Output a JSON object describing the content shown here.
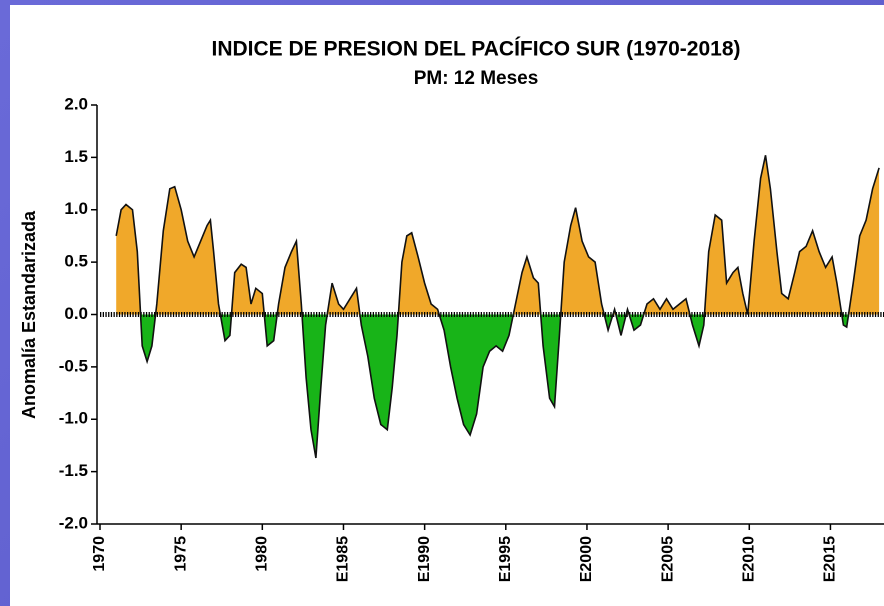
{
  "chart_data": {
    "type": "area",
    "title": "INDICE DE PRESION DEL PACÍFICO SUR (1970-2018)",
    "subtitle": "PM: 12 Meses",
    "y_label": "Anomalía Estandarizada",
    "x": [
      1971.0,
      1971.3,
      1971.6,
      1972.0,
      1972.3,
      1972.6,
      1972.9,
      1973.2,
      1973.5,
      1973.9,
      1974.3,
      1974.6,
      1975.0,
      1975.4,
      1975.8,
      1976.2,
      1976.6,
      1976.8,
      1977.0,
      1977.3,
      1977.7,
      1978.0,
      1978.3,
      1978.7,
      1979.0,
      1979.3,
      1979.6,
      1980.0,
      1980.3,
      1980.7,
      1981.0,
      1981.4,
      1981.8,
      1982.1,
      1982.4,
      1982.7,
      1983.0,
      1983.3,
      1983.6,
      1983.9,
      1984.3,
      1984.7,
      1985.0,
      1985.4,
      1985.8,
      1986.1,
      1986.5,
      1986.9,
      1987.3,
      1987.7,
      1988.0,
      1988.3,
      1988.6,
      1988.9,
      1989.2,
      1989.6,
      1990.0,
      1990.4,
      1990.8,
      1991.2,
      1991.6,
      1992.0,
      1992.4,
      1992.8,
      1993.2,
      1993.6,
      1994.0,
      1994.4,
      1994.8,
      1995.2,
      1995.6,
      1996.0,
      1996.3,
      1996.7,
      1997.0,
      1997.3,
      1997.7,
      1998.0,
      1998.3,
      1998.6,
      1999.0,
      1999.3,
      1999.7,
      2000.1,
      2000.5,
      2000.9,
      2001.3,
      2001.7,
      2002.1,
      2002.5,
      2002.9,
      2003.3,
      2003.7,
      2004.1,
      2004.5,
      2004.9,
      2005.3,
      2005.7,
      2006.1,
      2006.5,
      2006.9,
      2007.2,
      2007.5,
      2007.9,
      2008.3,
      2008.6,
      2009.0,
      2009.3,
      2009.6,
      2009.9,
      2010.3,
      2010.7,
      2011.0,
      2011.3,
      2011.7,
      2012.0,
      2012.4,
      2012.8,
      2013.1,
      2013.5,
      2013.9,
      2014.3,
      2014.7,
      2015.1,
      2015.4,
      2015.8,
      2016.0,
      2016.4,
      2016.8,
      2017.2,
      2017.6,
      2018.0
    ],
    "values": [
      0.75,
      1.0,
      1.05,
      1.0,
      0.6,
      -0.3,
      -0.45,
      -0.3,
      0.1,
      0.8,
      1.2,
      1.22,
      1.0,
      0.7,
      0.55,
      0.7,
      0.85,
      0.9,
      0.6,
      0.1,
      -0.25,
      -0.2,
      0.4,
      0.48,
      0.45,
      0.1,
      0.25,
      0.2,
      -0.3,
      -0.25,
      0.1,
      0.45,
      0.6,
      0.7,
      0.1,
      -0.6,
      -1.1,
      -1.37,
      -0.7,
      -0.1,
      0.3,
      0.1,
      0.05,
      0.15,
      0.25,
      -0.1,
      -0.4,
      -0.8,
      -1.05,
      -1.1,
      -0.7,
      -0.2,
      0.5,
      0.75,
      0.78,
      0.55,
      0.3,
      0.1,
      0.05,
      -0.15,
      -0.5,
      -0.8,
      -1.05,
      -1.15,
      -0.95,
      -0.5,
      -0.35,
      -0.3,
      -0.35,
      -0.2,
      0.1,
      0.4,
      0.55,
      0.35,
      0.3,
      -0.3,
      -0.8,
      -0.88,
      -0.2,
      0.5,
      0.85,
      1.02,
      0.7,
      0.55,
      0.5,
      0.1,
      -0.15,
      0.05,
      -0.2,
      0.05,
      -0.15,
      -0.1,
      0.1,
      0.15,
      0.05,
      0.15,
      0.05,
      0.1,
      0.15,
      -0.1,
      -0.3,
      -0.1,
      0.6,
      0.95,
      0.9,
      0.3,
      0.4,
      0.45,
      0.2,
      0.0,
      0.7,
      1.3,
      1.52,
      1.2,
      0.6,
      0.2,
      0.15,
      0.4,
      0.6,
      0.65,
      0.8,
      0.6,
      0.45,
      0.55,
      0.3,
      -0.1,
      -0.12,
      0.3,
      0.75,
      0.9,
      1.2,
      1.4
    ],
    "colors": {
      "positive": "#f0a82a",
      "negative": "#18b418",
      "line": "#111111"
    },
    "xlim": [
      1970,
      2018.3
    ],
    "xticks": [
      1970,
      1975,
      1980,
      {
        "value": 1985,
        "label": "E1985"
      },
      {
        "value": 1990,
        "label": "E1990"
      },
      {
        "value": 1995,
        "label": "E1995"
      },
      {
        "value": 2000,
        "label": "E2000"
      },
      {
        "value": 2005,
        "label": "E2005"
      },
      {
        "value": 2010,
        "label": "E2010"
      },
      {
        "value": 2015,
        "label": "E2015"
      }
    ],
    "ylim": [
      -2.0,
      2.0
    ],
    "yticks": [
      {
        "value": -2.0,
        "label": "-2.0"
      },
      {
        "value": -1.5,
        "label": "-1.5"
      },
      {
        "value": -1.0,
        "label": "-1.0"
      },
      {
        "value": -0.5,
        "label": "-0.5"
      },
      {
        "value": 0.0,
        "label": "0.0"
      },
      {
        "value": 0.5,
        "label": "0.5"
      },
      {
        "value": 1.0,
        "label": "1.0"
      },
      {
        "value": 1.5,
        "label": "1.5"
      },
      {
        "value": 2.0,
        "label": "2.0"
      }
    ],
    "grid": false
  }
}
